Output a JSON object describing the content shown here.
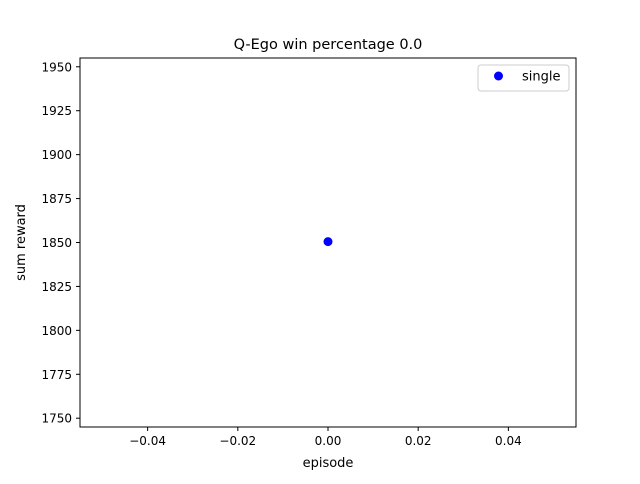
{
  "chart_data": {
    "type": "scatter",
    "title": "Q-Ego win percentage   0.0",
    "xlabel": "episode",
    "ylabel": "sum reward",
    "xlim": [
      -0.055,
      0.055
    ],
    "ylim": [
      1745,
      1955
    ],
    "x_ticks": [
      -0.04,
      -0.02,
      0.0,
      0.02,
      0.04
    ],
    "x_tick_labels": [
      "−0.04",
      "−0.02",
      "0.00",
      "0.02",
      "0.04"
    ],
    "y_ticks": [
      1750,
      1775,
      1800,
      1825,
      1850,
      1875,
      1900,
      1925,
      1950
    ],
    "y_tick_labels": [
      "1750",
      "1775",
      "1800",
      "1825",
      "1850",
      "1875",
      "1900",
      "1925",
      "1950"
    ],
    "grid": false,
    "legend_position": "top-right",
    "series": [
      {
        "name": "single",
        "color": "#0000ff",
        "marker": "circle",
        "x": [
          0.0
        ],
        "y": [
          1850.5
        ]
      }
    ]
  }
}
